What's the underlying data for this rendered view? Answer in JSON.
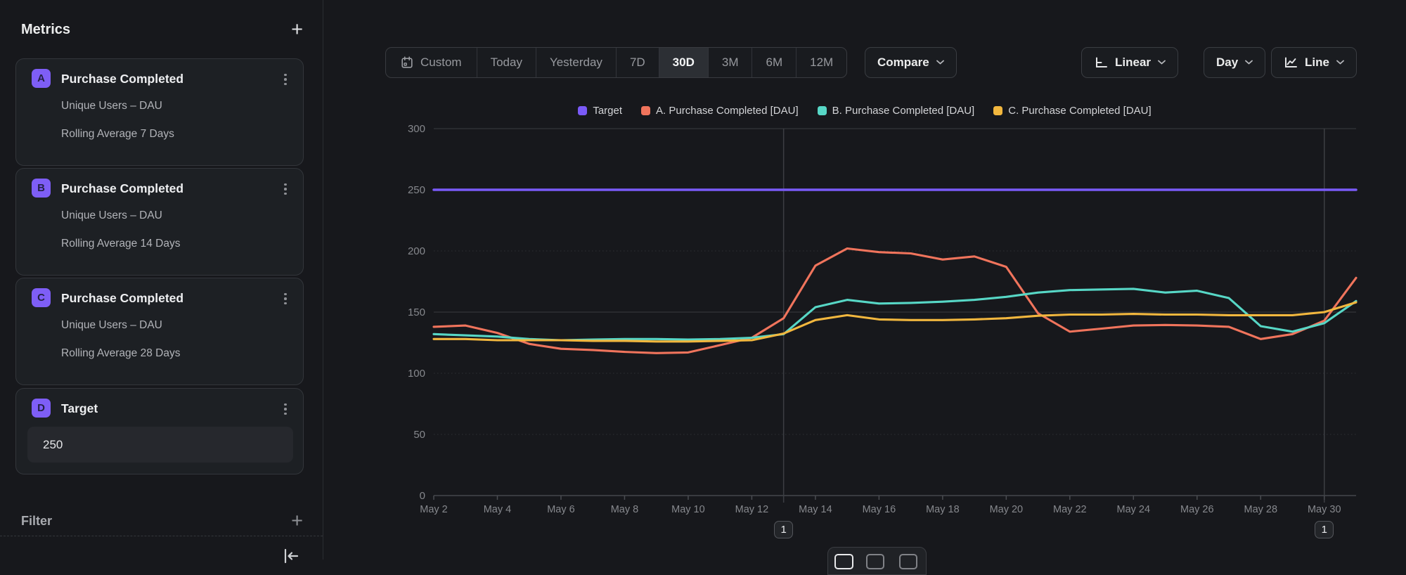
{
  "sidebar": {
    "title": "Metrics",
    "add_label": "+",
    "metrics": [
      {
        "badge": "A",
        "title": "Purchase Completed",
        "line1": "Unique Users – DAU",
        "line2": "Rolling Average 7 Days"
      },
      {
        "badge": "B",
        "title": "Purchase Completed",
        "line1": "Unique Users – DAU",
        "line2": "Rolling Average 14 Days"
      },
      {
        "badge": "C",
        "title": "Purchase Completed",
        "line1": "Unique Users – DAU",
        "line2": "Rolling Average 28 Days"
      }
    ],
    "target": {
      "badge": "D",
      "title": "Target",
      "value": "250"
    },
    "filter": {
      "label": "Filter",
      "add_label": "+"
    }
  },
  "toolbar": {
    "ranges": [
      {
        "label": "Custom",
        "icon": "calendar-icon",
        "active": false
      },
      {
        "label": "Today",
        "active": false
      },
      {
        "label": "Yesterday",
        "active": false
      },
      {
        "label": "7D",
        "active": false
      },
      {
        "label": "30D",
        "active": true
      },
      {
        "label": "3M",
        "active": false
      },
      {
        "label": "6M",
        "active": false
      },
      {
        "label": "12M",
        "active": false
      }
    ],
    "compare_label": "Compare",
    "scale_label": "Linear",
    "interval_label": "Day",
    "chart_type_label": "Line"
  },
  "chart_data": {
    "type": "line",
    "title": "",
    "xlabel": "",
    "ylabel": "",
    "ylim": [
      0,
      300
    ],
    "yticks": [
      0,
      50,
      100,
      150,
      200,
      250,
      300
    ],
    "grid": true,
    "legend_position": "top-center",
    "x": [
      "May 2",
      "May 3",
      "May 4",
      "May 5",
      "May 6",
      "May 7",
      "May 8",
      "May 9",
      "May 10",
      "May 11",
      "May 12",
      "May 13",
      "May 14",
      "May 15",
      "May 16",
      "May 17",
      "May 18",
      "May 19",
      "May 20",
      "May 21",
      "May 22",
      "May 23",
      "May 24",
      "May 25",
      "May 26",
      "May 27",
      "May 28",
      "May 29",
      "May 30",
      "May 31"
    ],
    "x_tick_indices": [
      0,
      2,
      4,
      6,
      8,
      10,
      12,
      14,
      16,
      18,
      20,
      22,
      24,
      26,
      28
    ],
    "series": [
      {
        "name": "Target",
        "color": "#7A5AF8",
        "flat_value": 250
      },
      {
        "name": "A. Purchase Completed [DAU]",
        "color": "#F0745C",
        "values": [
          138,
          139,
          133,
          124,
          120,
          119,
          117.5,
          116.5,
          117,
          123,
          129,
          145,
          188,
          202,
          199,
          198,
          193,
          195.5,
          187,
          149,
          134,
          136.5,
          139,
          139.5,
          139,
          138,
          128,
          132,
          143,
          178
        ]
      },
      {
        "name": "B. Purchase Completed [DAU]",
        "color": "#57D7C6",
        "values": [
          132,
          131,
          130,
          128,
          127,
          127.5,
          128,
          128,
          127.5,
          128,
          129,
          132,
          154,
          160,
          157,
          157.5,
          158.5,
          160,
          162.5,
          166,
          168,
          168.5,
          169,
          166,
          167.5,
          161.5,
          138.5,
          134,
          141,
          159
        ]
      },
      {
        "name": "C. Purchase Completed [DAU]",
        "color": "#F2B73E",
        "values": [
          128,
          128,
          127,
          127,
          127,
          126.5,
          126.5,
          126,
          126,
          126.5,
          127,
          132.5,
          143.5,
          147.5,
          144,
          143.5,
          143.5,
          144,
          145,
          147,
          148,
          148,
          148.5,
          148,
          148,
          147.5,
          147.5,
          147.5,
          150,
          158
        ]
      }
    ],
    "annotations": [
      {
        "label": "1",
        "index": 11,
        "date": "May 13"
      },
      {
        "label": "1",
        "index": 28,
        "date": "May 30"
      }
    ]
  },
  "bottom_controls": {
    "icons": [
      "panel-full-icon",
      "panel-half-icon",
      "panel-third-icon"
    ]
  }
}
